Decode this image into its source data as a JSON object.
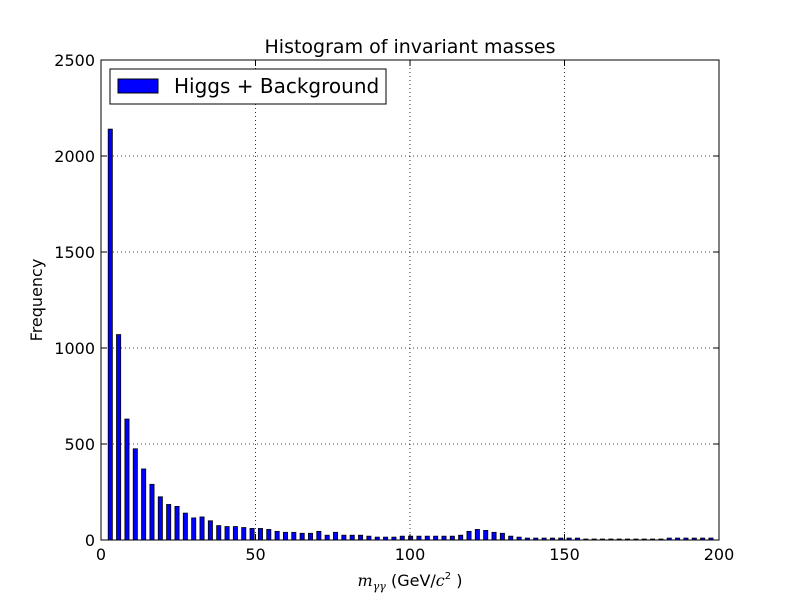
{
  "chart_data": {
    "type": "bar",
    "title": "Histogram of invariant masses",
    "xlabel_math": "m",
    "xlabel_sub": "γγ",
    "xlabel_text": " (GeV/",
    "xlabel_c": "c",
    "xlabel_exp": "2",
    "xlabel_close": " )",
    "ylabel": "Frequency",
    "xlim": [
      0,
      200
    ],
    "ylim": [
      0,
      2500
    ],
    "xticks": [
      0,
      50,
      100,
      150,
      200
    ],
    "yticks": [
      0,
      500,
      1000,
      1500,
      2000,
      2500
    ],
    "grid": true,
    "legend_position": "top-left",
    "bar_color": "#0000ff",
    "bar_edge": "#000000",
    "series": [
      {
        "name": "Higgs + Background",
        "x": [
          3,
          5.7,
          8.4,
          11.1,
          13.8,
          16.5,
          19.2,
          21.9,
          24.6,
          27.3,
          30,
          32.7,
          35.4,
          38.1,
          40.8,
          43.5,
          46.2,
          48.9,
          51.6,
          54.3,
          57,
          59.7,
          62.4,
          65.1,
          67.8,
          70.5,
          73.2,
          75.9,
          78.6,
          81.3,
          84,
          86.7,
          89.4,
          92.1,
          94.8,
          97.5,
          100.2,
          102.9,
          105.6,
          108.3,
          111,
          113.7,
          116.4,
          119.1,
          121.8,
          124.5,
          127.2,
          129.9,
          132.6,
          135.3,
          138,
          140.7,
          143.4,
          146.1,
          148.8,
          151.5,
          154.2,
          156.9,
          159.6,
          162.3,
          165,
          167.7,
          170.4,
          173.1,
          175.8,
          178.5,
          181.2,
          183.9,
          186.6,
          189.3,
          192,
          194.7,
          197.4
        ],
        "values": [
          2140,
          1070,
          630,
          475,
          370,
          290,
          225,
          185,
          175,
          140,
          115,
          120,
          100,
          75,
          70,
          70,
          65,
          60,
          60,
          55,
          45,
          40,
          40,
          35,
          35,
          45,
          25,
          40,
          25,
          25,
          25,
          20,
          15,
          15,
          15,
          20,
          20,
          20,
          20,
          20,
          20,
          20,
          25,
          45,
          55,
          50,
          40,
          35,
          20,
          15,
          10,
          10,
          10,
          10,
          10,
          10,
          10,
          5,
          5,
          5,
          5,
          5,
          5,
          5,
          5,
          5,
          5,
          10,
          10,
          10,
          10,
          10,
          10
        ]
      }
    ]
  }
}
